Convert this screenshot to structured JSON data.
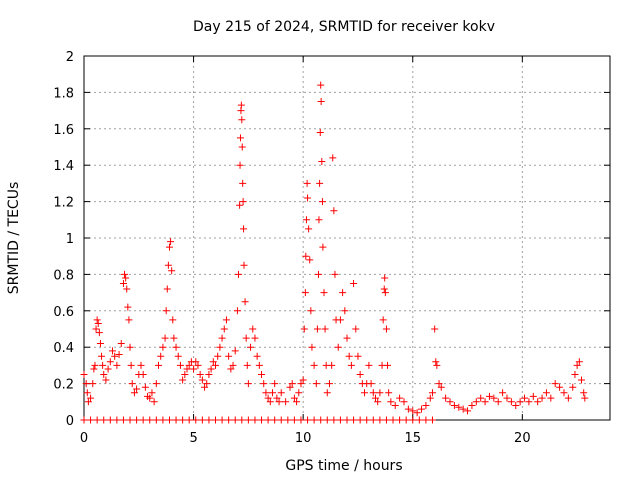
{
  "chart_data": {
    "type": "scatter",
    "title": "Day 215 of 2024, SRMTID for receiver kokv",
    "xlabel": "GPS time / hours",
    "ylabel": "SRMTID / TECUs",
    "xlim": [
      0,
      24
    ],
    "ylim": [
      0,
      2
    ],
    "xticks": [
      0,
      5,
      10,
      15,
      20
    ],
    "yticks": [
      0,
      0.2,
      0.4,
      0.6,
      0.8,
      1,
      1.2,
      1.4,
      1.6,
      1.8,
      2
    ],
    "ytick_labels": [
      "0",
      "0.2",
      "0.4",
      "0.6",
      "0.8",
      "1",
      "1.2",
      "1.4",
      "1.6",
      "1.8",
      "2"
    ],
    "grid": true,
    "marker": "+",
    "color": "#ff0000",
    "series": [
      {
        "name": "SRMTID",
        "points": [
          [
            0.0,
            0.25
          ],
          [
            0.1,
            0.2
          ],
          [
            0.15,
            0.15
          ],
          [
            0.2,
            0.1
          ],
          [
            0.3,
            0.12
          ],
          [
            0.4,
            0.2
          ],
          [
            0.45,
            0.28
          ],
          [
            0.5,
            0.3
          ],
          [
            0.55,
            0.5
          ],
          [
            0.6,
            0.55
          ],
          [
            0.65,
            0.53
          ],
          [
            0.7,
            0.48
          ],
          [
            0.75,
            0.42
          ],
          [
            0.8,
            0.35
          ],
          [
            0.85,
            0.3
          ],
          [
            0.9,
            0.25
          ],
          [
            1.0,
            0.22
          ],
          [
            1.1,
            0.28
          ],
          [
            1.2,
            0.32
          ],
          [
            1.3,
            0.38
          ],
          [
            1.4,
            0.35
          ],
          [
            1.5,
            0.3
          ],
          [
            1.6,
            0.36
          ],
          [
            1.7,
            0.42
          ],
          [
            1.8,
            0.75
          ],
          [
            1.85,
            0.8
          ],
          [
            1.9,
            0.78
          ],
          [
            1.95,
            0.72
          ],
          [
            2.0,
            0.62
          ],
          [
            2.05,
            0.55
          ],
          [
            2.1,
            0.4
          ],
          [
            2.15,
            0.3
          ],
          [
            2.2,
            0.2
          ],
          [
            2.3,
            0.15
          ],
          [
            2.4,
            0.17
          ],
          [
            2.5,
            0.25
          ],
          [
            2.6,
            0.3
          ],
          [
            2.7,
            0.25
          ],
          [
            2.8,
            0.18
          ],
          [
            2.9,
            0.13
          ],
          [
            3.0,
            0.12
          ],
          [
            3.1,
            0.15
          ],
          [
            3.2,
            0.1
          ],
          [
            3.3,
            0.2
          ],
          [
            3.4,
            0.3
          ],
          [
            3.5,
            0.35
          ],
          [
            3.6,
            0.4
          ],
          [
            3.7,
            0.45
          ],
          [
            3.75,
            0.6
          ],
          [
            3.8,
            0.72
          ],
          [
            3.85,
            0.85
          ],
          [
            3.9,
            0.95
          ],
          [
            3.95,
            0.98
          ],
          [
            4.0,
            0.82
          ],
          [
            4.05,
            0.55
          ],
          [
            4.1,
            0.45
          ],
          [
            4.2,
            0.4
          ],
          [
            4.3,
            0.35
          ],
          [
            4.4,
            0.3
          ],
          [
            4.5,
            0.22
          ],
          [
            4.6,
            0.25
          ],
          [
            4.7,
            0.28
          ],
          [
            4.8,
            0.3
          ],
          [
            4.9,
            0.32
          ],
          [
            5.0,
            0.28
          ],
          [
            5.1,
            0.32
          ],
          [
            5.2,
            0.3
          ],
          [
            5.3,
            0.25
          ],
          [
            5.4,
            0.22
          ],
          [
            5.5,
            0.18
          ],
          [
            5.6,
            0.2
          ],
          [
            5.7,
            0.25
          ],
          [
            5.8,
            0.28
          ],
          [
            5.9,
            0.32
          ],
          [
            6.0,
            0.3
          ],
          [
            6.1,
            0.35
          ],
          [
            6.2,
            0.4
          ],
          [
            6.3,
            0.45
          ],
          [
            6.4,
            0.5
          ],
          [
            6.5,
            0.55
          ],
          [
            6.6,
            0.35
          ],
          [
            6.7,
            0.28
          ],
          [
            6.8,
            0.3
          ],
          [
            6.9,
            0.38
          ],
          [
            7.0,
            0.6
          ],
          [
            7.05,
            0.8
          ],
          [
            7.1,
            1.18
          ],
          [
            7.12,
            1.4
          ],
          [
            7.14,
            1.55
          ],
          [
            7.16,
            1.7
          ],
          [
            7.18,
            1.73
          ],
          [
            7.2,
            1.65
          ],
          [
            7.22,
            1.5
          ],
          [
            7.24,
            1.3
          ],
          [
            7.26,
            1.2
          ],
          [
            7.28,
            1.05
          ],
          [
            7.3,
            0.85
          ],
          [
            7.35,
            0.65
          ],
          [
            7.4,
            0.45
          ],
          [
            7.45,
            0.3
          ],
          [
            7.5,
            0.2
          ],
          [
            7.6,
            0.4
          ],
          [
            7.7,
            0.5
          ],
          [
            7.8,
            0.45
          ],
          [
            7.9,
            0.35
          ],
          [
            8.0,
            0.3
          ],
          [
            8.1,
            0.25
          ],
          [
            8.2,
            0.2
          ],
          [
            8.3,
            0.15
          ],
          [
            8.4,
            0.12
          ],
          [
            8.5,
            0.1
          ],
          [
            8.6,
            0.15
          ],
          [
            8.7,
            0.2
          ],
          [
            8.8,
            0.12
          ],
          [
            8.9,
            0.1
          ],
          [
            9.0,
            0.15
          ],
          [
            9.2,
            0.1
          ],
          [
            9.4,
            0.18
          ],
          [
            9.5,
            0.2
          ],
          [
            9.6,
            0.12
          ],
          [
            9.7,
            0.1
          ],
          [
            9.8,
            0.15
          ],
          [
            9.9,
            0.2
          ],
          [
            10.0,
            0.22
          ],
          [
            10.05,
            0.5
          ],
          [
            10.1,
            0.7
          ],
          [
            10.12,
            0.9
          ],
          [
            10.15,
            1.1
          ],
          [
            10.18,
            1.3
          ],
          [
            10.2,
            1.22
          ],
          [
            10.25,
            1.05
          ],
          [
            10.3,
            0.88
          ],
          [
            10.35,
            0.6
          ],
          [
            10.4,
            0.4
          ],
          [
            10.5,
            0.3
          ],
          [
            10.6,
            0.2
          ],
          [
            10.65,
            0.5
          ],
          [
            10.7,
            0.8
          ],
          [
            10.72,
            1.1
          ],
          [
            10.75,
            1.3
          ],
          [
            10.78,
            1.58
          ],
          [
            10.8,
            1.84
          ],
          [
            10.82,
            1.75
          ],
          [
            10.85,
            1.42
          ],
          [
            10.88,
            1.2
          ],
          [
            10.9,
            0.95
          ],
          [
            10.95,
            0.7
          ],
          [
            11.0,
            0.5
          ],
          [
            11.05,
            0.3
          ],
          [
            11.1,
            0.15
          ],
          [
            11.2,
            0.2
          ],
          [
            11.3,
            0.3
          ],
          [
            11.35,
            1.44
          ],
          [
            11.4,
            1.15
          ],
          [
            11.45,
            0.8
          ],
          [
            11.5,
            0.55
          ],
          [
            11.6,
            0.4
          ],
          [
            11.7,
            0.55
          ],
          [
            11.8,
            0.7
          ],
          [
            11.9,
            0.6
          ],
          [
            12.0,
            0.45
          ],
          [
            12.1,
            0.35
          ],
          [
            12.2,
            0.3
          ],
          [
            12.3,
            0.75
          ],
          [
            12.4,
            0.5
          ],
          [
            12.5,
            0.35
          ],
          [
            12.6,
            0.25
          ],
          [
            12.7,
            0.2
          ],
          [
            12.8,
            0.15
          ],
          [
            12.9,
            0.2
          ],
          [
            13.0,
            0.3
          ],
          [
            13.1,
            0.2
          ],
          [
            13.2,
            0.15
          ],
          [
            13.3,
            0.12
          ],
          [
            13.4,
            0.1
          ],
          [
            13.5,
            0.15
          ],
          [
            13.6,
            0.3
          ],
          [
            13.65,
            0.55
          ],
          [
            13.7,
            0.72
          ],
          [
            13.72,
            0.78
          ],
          [
            13.75,
            0.7
          ],
          [
            13.8,
            0.5
          ],
          [
            13.85,
            0.3
          ],
          [
            13.9,
            0.15
          ],
          [
            14.0,
            0.1
          ],
          [
            14.2,
            0.08
          ],
          [
            14.4,
            0.12
          ],
          [
            14.6,
            0.1
          ],
          [
            14.8,
            0.06
          ],
          [
            15.0,
            0.05
          ],
          [
            15.2,
            0.04
          ],
          [
            15.4,
            0.06
          ],
          [
            15.6,
            0.08
          ],
          [
            15.8,
            0.12
          ],
          [
            15.9,
            0.15
          ],
          [
            16.0,
            0.5
          ],
          [
            16.05,
            0.32
          ],
          [
            16.1,
            0.3
          ],
          [
            16.2,
            0.2
          ],
          [
            16.3,
            0.18
          ],
          [
            16.5,
            0.12
          ],
          [
            16.7,
            0.1
          ],
          [
            16.9,
            0.08
          ],
          [
            17.1,
            0.07
          ],
          [
            17.3,
            0.06
          ],
          [
            17.5,
            0.05
          ],
          [
            17.7,
            0.08
          ],
          [
            17.9,
            0.1
          ],
          [
            18.1,
            0.12
          ],
          [
            18.3,
            0.1
          ],
          [
            18.5,
            0.13
          ],
          [
            18.7,
            0.12
          ],
          [
            18.9,
            0.1
          ],
          [
            19.1,
            0.15
          ],
          [
            19.3,
            0.12
          ],
          [
            19.5,
            0.1
          ],
          [
            19.7,
            0.08
          ],
          [
            19.9,
            0.1
          ],
          [
            20.1,
            0.12
          ],
          [
            20.3,
            0.1
          ],
          [
            20.5,
            0.13
          ],
          [
            20.7,
            0.1
          ],
          [
            20.9,
            0.12
          ],
          [
            21.1,
            0.15
          ],
          [
            21.3,
            0.12
          ],
          [
            21.5,
            0.2
          ],
          [
            21.7,
            0.18
          ],
          [
            21.9,
            0.15
          ],
          [
            22.1,
            0.12
          ],
          [
            22.3,
            0.18
          ],
          [
            22.4,
            0.25
          ],
          [
            22.5,
            0.3
          ],
          [
            22.6,
            0.32
          ],
          [
            22.7,
            0.22
          ],
          [
            22.8,
            0.15
          ],
          [
            22.85,
            0.12
          ]
        ],
        "zero_points_x": [
          0,
          0.3,
          0.6,
          0.9,
          1.2,
          1.5,
          1.8,
          2.1,
          2.4,
          2.7,
          3.0,
          3.3,
          3.6,
          3.9,
          4.2,
          4.5,
          4.8,
          5.1,
          5.4,
          5.7,
          6.0,
          6.3,
          6.6,
          6.9,
          7.2,
          7.5,
          7.8,
          8.1,
          8.4,
          8.7,
          9.0,
          9.3,
          9.6,
          9.9,
          10.2,
          10.5,
          10.8,
          11.1,
          11.4,
          11.7,
          12.0,
          12.3,
          12.6,
          12.9,
          13.2,
          13.5,
          13.8,
          14.1,
          14.4,
          14.7,
          15.0,
          15.3,
          15.6,
          15.9
        ]
      }
    ]
  }
}
